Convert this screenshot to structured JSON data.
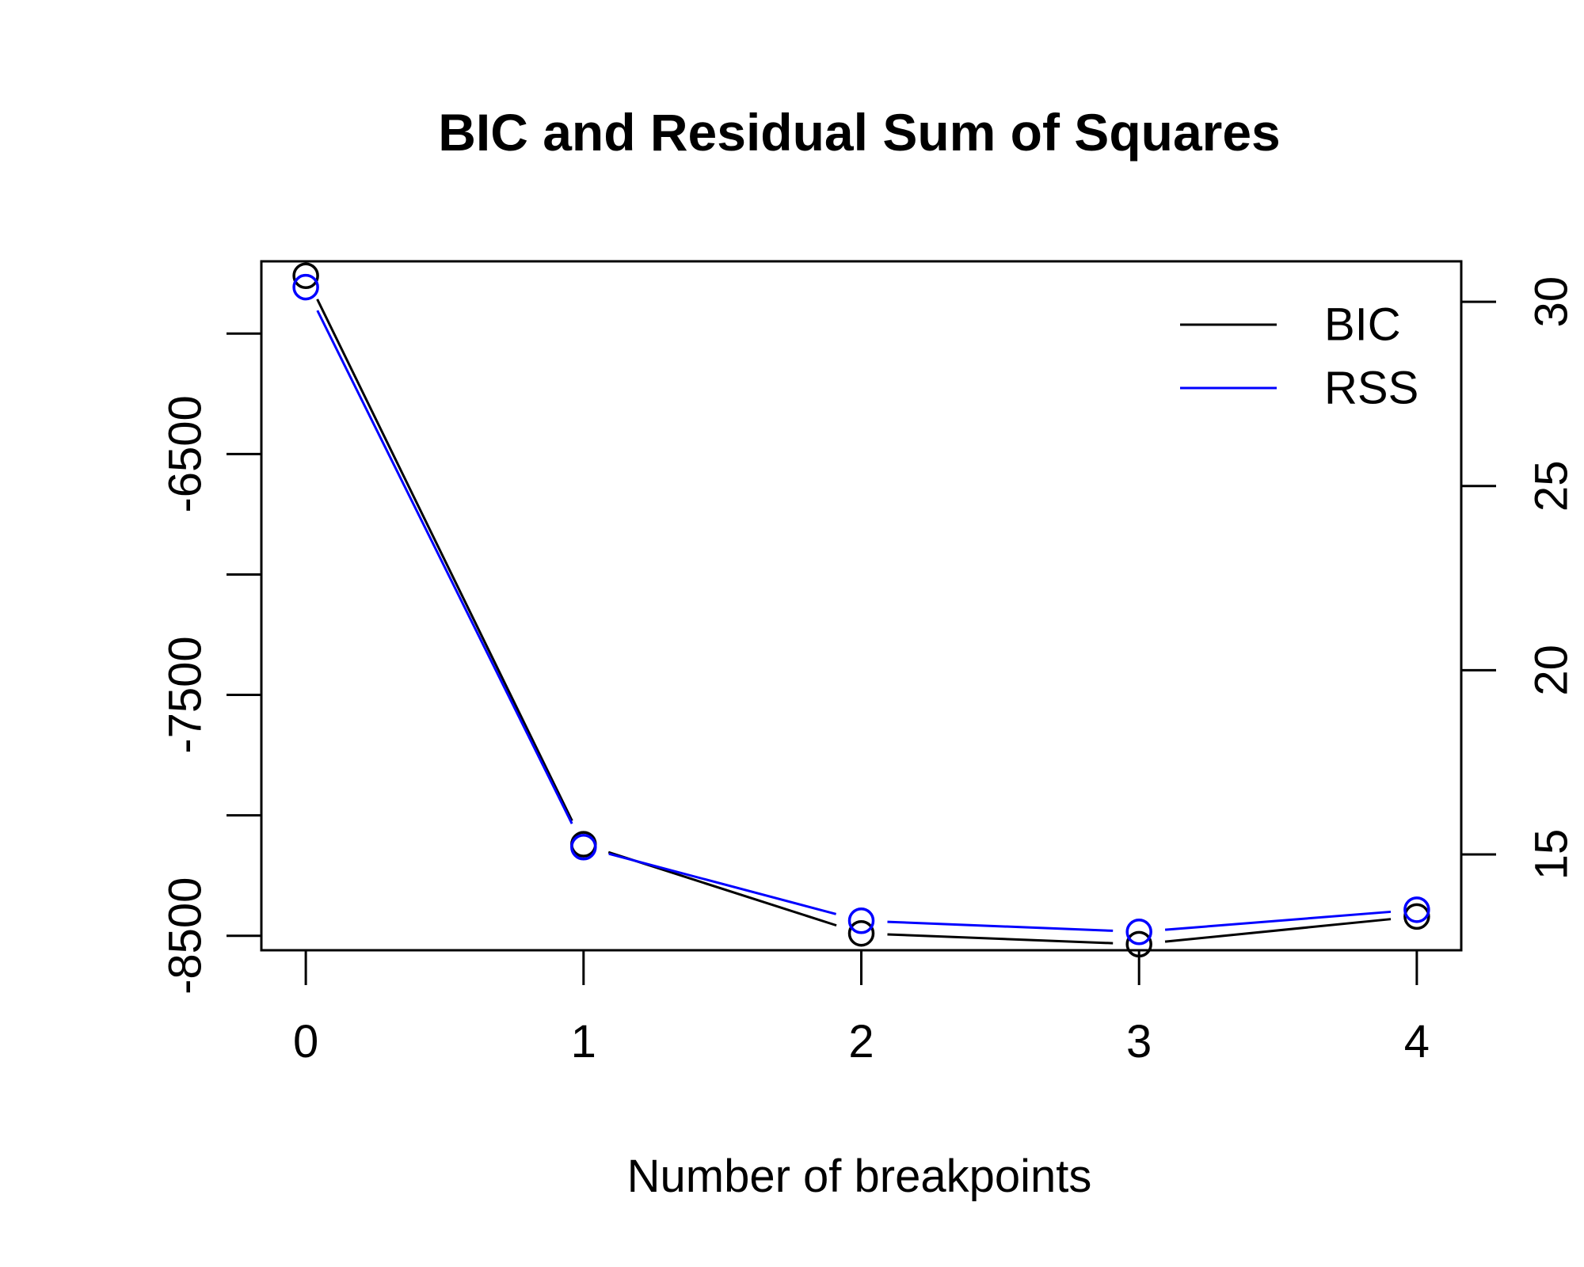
{
  "chart_data": {
    "type": "line",
    "title": "BIC and Residual Sum of Squares",
    "xlabel": "Number of breakpoints",
    "ylabel": "",
    "y2label": "",
    "x": [
      0,
      1,
      2,
      3,
      4
    ],
    "xlim": [
      -0.16,
      4.16
    ],
    "xticks": [
      "0",
      "1",
      "2",
      "3",
      "4"
    ],
    "y_left": {
      "lim": [
        -8560,
        -5700
      ],
      "ticks": [
        -8500,
        -8000,
        -7500,
        -7000,
        -6500,
        -6000
      ],
      "tick_labels": [
        "-8500",
        "",
        "-7500",
        "",
        "-6500",
        ""
      ]
    },
    "y_right": {
      "lim": [
        12.4,
        31.1
      ],
      "ticks": [
        15,
        20,
        25,
        30
      ],
      "tick_labels": [
        "15",
        "20",
        "25",
        "30"
      ]
    },
    "series": [
      {
        "name": "BIC",
        "axis": "left",
        "color": "#000000",
        "values": [
          -5760,
          -8120,
          -8490,
          -8535,
          -8420
        ]
      },
      {
        "name": "RSS",
        "axis": "right",
        "color": "#0000ff",
        "values": [
          30.4,
          15.2,
          13.2,
          12.9,
          13.5
        ]
      }
    ],
    "legend": {
      "position": "top-right",
      "entries": [
        {
          "label": "BIC",
          "color": "#000000"
        },
        {
          "label": "RSS",
          "color": "#0000ff"
        }
      ]
    },
    "grid": false
  }
}
